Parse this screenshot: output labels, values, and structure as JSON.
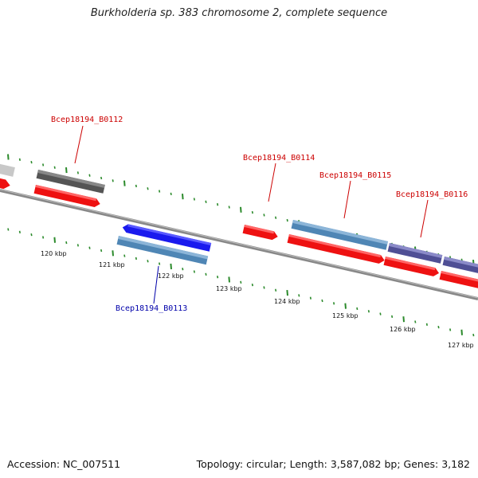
{
  "title": "Burkholderia sp. 383 chromosome 2, complete sequence",
  "footer": {
    "accession": "Accession: NC_007511",
    "stats": "Topology: circular; Length: 3,587,082 bp; Genes: 3,182"
  },
  "colors": {
    "backbone": "#777777",
    "forward_gene": "#ee1111",
    "reverse_gene": "#1a1aee",
    "cds_blue": "#4f86b5",
    "cds_purple": "#4f4f95",
    "grey_gene": "#555555",
    "tick": "#2b8a2b",
    "label_forward": "#cc0000",
    "label_reverse": "#0000aa"
  },
  "ticks": [
    {
      "label": "120 kbp"
    },
    {
      "label": "121 kbp"
    },
    {
      "label": "122 kbp"
    },
    {
      "label": "123 kbp"
    },
    {
      "label": "124 kbp"
    },
    {
      "label": "125 kbp"
    },
    {
      "label": "126 kbp"
    },
    {
      "label": "127 kbp"
    }
  ],
  "gene_labels": [
    {
      "name": "Bcep18194_B0112",
      "strand": "forward"
    },
    {
      "name": "Bcep18194_B0113",
      "strand": "reverse"
    },
    {
      "name": "Bcep18194_B0114",
      "strand": "forward"
    },
    {
      "name": "Bcep18194_B0115",
      "strand": "forward"
    },
    {
      "name": "Bcep18194_B0116",
      "strand": "forward"
    }
  ]
}
